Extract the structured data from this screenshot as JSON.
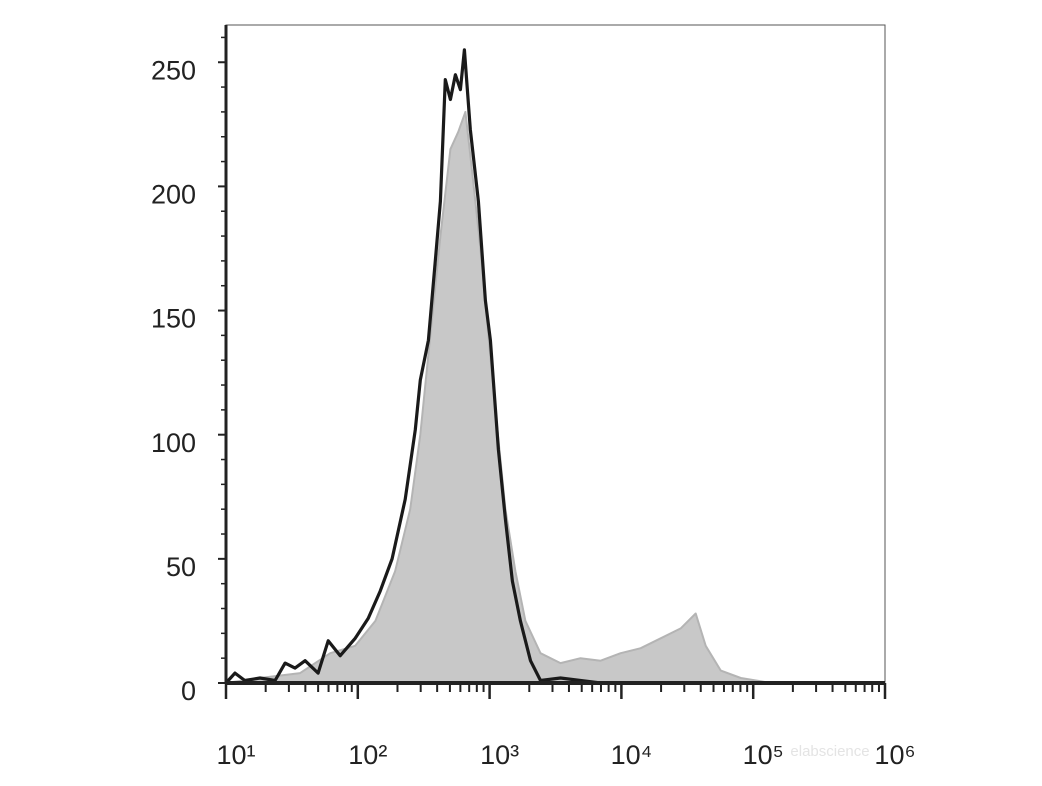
{
  "chart_data": {
    "type": "histogram-overlay",
    "xscale": "log",
    "xlim": [
      10,
      1000000
    ],
    "xticks": [
      {
        "value": 10,
        "label": "10¹"
      },
      {
        "value": 100,
        "label": "10²"
      },
      {
        "value": 1000,
        "label": "10³"
      },
      {
        "value": 10000,
        "label": "10⁴"
      },
      {
        "value": 100000,
        "label": "10⁵"
      },
      {
        "value": 1000000,
        "label": "10⁶"
      }
    ],
    "xminorticks": [
      20,
      30,
      40,
      50,
      60,
      70,
      80,
      90,
      200,
      300,
      400,
      500,
      600,
      700,
      800,
      900,
      2000,
      3000,
      4000,
      5000,
      6000,
      7000,
      8000,
      9000,
      20000,
      30000,
      40000,
      50000,
      60000,
      70000,
      80000,
      90000,
      200000,
      300000,
      400000,
      500000,
      600000,
      700000,
      800000,
      900000
    ],
    "ylim": [
      0,
      265
    ],
    "yticks": [
      0,
      50,
      100,
      150,
      200,
      250
    ],
    "yminorticks": [
      10,
      20,
      30,
      40,
      60,
      70,
      80,
      90,
      110,
      120,
      130,
      140,
      160,
      170,
      180,
      190,
      210,
      220,
      230,
      240,
      260
    ],
    "watermark": "elabscience",
    "series": [
      {
        "style": "filled",
        "color": "#c8c8c8",
        "x": [
          10,
          18.1,
          36.5,
          61.7,
          95.5,
          136,
          192,
          250,
          298,
          355,
          423,
          504,
          579,
          655,
          740,
          851,
          979,
          1107,
          1318,
          1570,
          1870,
          2432,
          3451,
          4898,
          6950,
          9860,
          14000,
          19860,
          28180,
          36640,
          43650,
          56750,
          80540,
          136100,
          1000000
        ],
        "values": [
          0,
          2,
          4,
          12,
          15,
          25,
          45,
          70,
          100,
          140,
          180,
          215,
          222,
          230,
          205,
          175,
          140,
          110,
          70,
          45,
          25,
          12,
          8,
          10,
          9,
          12,
          14,
          18,
          22,
          28,
          15,
          5,
          2,
          0,
          0
        ]
      },
      {
        "style": "line",
        "color": "#1a1a1a",
        "x": [
          10,
          11.7,
          13.9,
          18.1,
          23.6,
          28.1,
          33.4,
          39.8,
          50,
          59.6,
          73.5,
          95.5,
          120,
          148,
          182,
          229,
          273,
          298,
          343,
          387,
          423,
          461,
          504,
          550,
          600,
          644,
          714,
          822,
          929,
          1014,
          1167,
          1318,
          1490,
          1714,
          2042,
          2432,
          3451,
          4898,
          6950,
          1000000
        ],
        "values": [
          0,
          4,
          1,
          2,
          1,
          8,
          6,
          9,
          4,
          17,
          11,
          18,
          26,
          37,
          50,
          74,
          102,
          122,
          138,
          170,
          194,
          243,
          235,
          245,
          239,
          255,
          223,
          194,
          154,
          138,
          94,
          66,
          41,
          25,
          9,
          1,
          2,
          1,
          0,
          0
        ]
      }
    ]
  }
}
